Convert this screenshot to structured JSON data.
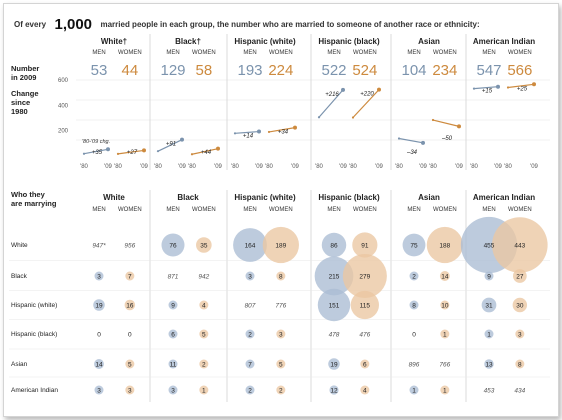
{
  "headline": {
    "prefix": "Of every",
    "number": "1,000",
    "suffix": "married people in each group, the number who are married to someone of another race or ethnicity:"
  },
  "colors": {
    "men": "#7b93ad",
    "women": "#cd8a3e",
    "men_bubble": "#aabdd3",
    "women_bubble": "#ebc6a2"
  },
  "top_section": {
    "row_number_label": "Number in 2009",
    "row_change_label": "Change since 1980",
    "change_note": "'80-'09 chg.",
    "y_ticks": [
      "600",
      "400",
      "200"
    ],
    "x_ticks": [
      "'80",
      "'09"
    ],
    "men_label": "MEN",
    "women_label": "WOMEN"
  },
  "chart_data": {
    "type": "line",
    "title": "Of every 1,000 married people in each group, the number who are married to someone of another race or ethnicity",
    "ylabel": "Change since 1980",
    "x": [
      "'80",
      "'09"
    ],
    "ylim": [
      0,
      600
    ],
    "groups": [
      {
        "name": "White†",
        "men": {
          "n2009": "53",
          "change": "+35",
          "y1980": 18,
          "y2009": 53
        },
        "women": {
          "n2009": "44",
          "change": "+27",
          "y1980": 17,
          "y2009": 44
        }
      },
      {
        "name": "Black†",
        "men": {
          "n2009": "129",
          "change": "+91",
          "y1980": 38,
          "y2009": 129
        },
        "women": {
          "n2009": "58",
          "change": "+44",
          "y1980": 14,
          "y2009": 58
        }
      },
      {
        "name": "Hispanic (white)",
        "men": {
          "n2009": "193",
          "change": "+14",
          "y1980": 179,
          "y2009": 193
        },
        "women": {
          "n2009": "224",
          "change": "+34",
          "y1980": 190,
          "y2009": 224
        }
      },
      {
        "name": "Hispanic (black)",
        "men": {
          "n2009": "522",
          "change": "+216",
          "y1980": 306,
          "y2009": 522
        },
        "women": {
          "n2009": "524",
          "change": "+220",
          "y1980": 304,
          "y2009": 524
        }
      },
      {
        "name": "Asian",
        "men": {
          "n2009": "104",
          "change": "–34",
          "y1980": 138,
          "y2009": 104
        },
        "women": {
          "n2009": "234",
          "change": "–50",
          "y1980": 284,
          "y2009": 234
        }
      },
      {
        "name": "American Indian",
        "men": {
          "n2009": "547",
          "change": "+15",
          "y1980": 532,
          "y2009": 547
        },
        "women": {
          "n2009": "566",
          "change": "+25",
          "y1980": 541,
          "y2009": 566
        }
      }
    ],
    "spouse_matrix": {
      "title": "Who they are marrying",
      "row_labels": [
        "White",
        "Black",
        "Hispanic (white)",
        "Hispanic (black)",
        "Asian",
        "American Indian"
      ],
      "columns": [
        "White",
        "Black",
        "Hispanic (white)",
        "Hispanic (black)",
        "Asian",
        "American Indian"
      ],
      "values": [
        [
          [
            "947*",
            "956"
          ],
          [
            "76",
            "35"
          ],
          [
            "164",
            "189"
          ],
          [
            "86",
            "91"
          ],
          [
            "75",
            "188"
          ],
          [
            "455",
            "443"
          ]
        ],
        [
          [
            "3",
            "7"
          ],
          [
            "871",
            "942"
          ],
          [
            "3",
            "8"
          ],
          [
            "215",
            "279"
          ],
          [
            "2",
            "14"
          ],
          [
            "9",
            "27"
          ]
        ],
        [
          [
            "19",
            "16"
          ],
          [
            "9",
            "4"
          ],
          [
            "807",
            "776"
          ],
          [
            "151",
            "115"
          ],
          [
            "8",
            "10"
          ],
          [
            "31",
            "30"
          ]
        ],
        [
          [
            "0",
            "0"
          ],
          [
            "6",
            "5"
          ],
          [
            "2",
            "3"
          ],
          [
            "478",
            "476"
          ],
          [
            "0",
            "1"
          ],
          [
            "1",
            "3"
          ]
        ],
        [
          [
            "14",
            "5"
          ],
          [
            "11",
            "2"
          ],
          [
            "7",
            "5"
          ],
          [
            "19",
            "6"
          ],
          [
            "896",
            "766"
          ],
          [
            "13",
            "8"
          ]
        ],
        [
          [
            "3",
            "3"
          ],
          [
            "3",
            "1"
          ],
          [
            "2",
            "2"
          ],
          [
            "12",
            "4"
          ],
          [
            "1",
            "1"
          ],
          [
            "453",
            "434"
          ]
        ]
      ]
    }
  }
}
